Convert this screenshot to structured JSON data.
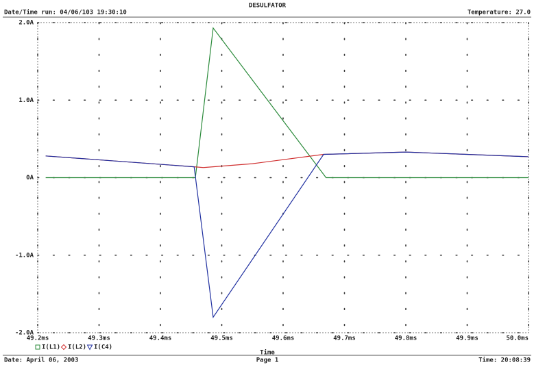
{
  "chart_data": {
    "type": "line",
    "title": "DESULFATOR",
    "run_info": "Date/Time run: 04/06/103 19:30:10",
    "temperature": "Temperature: 27.0",
    "date": "Date: April 06, 2003",
    "page": "Page 1",
    "time": "Time: 20:08:39",
    "xlabel": "Time",
    "xlim": [
      49.2,
      50.0
    ],
    "ylim": [
      -2.0,
      2.0
    ],
    "xticks": [
      {
        "value": 49.2,
        "label": "49.2ms"
      },
      {
        "value": 49.3,
        "label": "49.3ms"
      },
      {
        "value": 49.4,
        "label": "49.4ms"
      },
      {
        "value": 49.5,
        "label": "49.5ms"
      },
      {
        "value": 49.6,
        "label": "49.6ms"
      },
      {
        "value": 49.7,
        "label": "49.7ms"
      },
      {
        "value": 49.8,
        "label": "49.8ms"
      },
      {
        "value": 49.9,
        "label": "49.9ms"
      },
      {
        "value": 50.0,
        "label": "50.0ms"
      }
    ],
    "yticks": [
      {
        "value": 2.0,
        "label": "2.0A"
      },
      {
        "value": 1.0,
        "label": "1.0A"
      },
      {
        "value": 0,
        "label": "0A"
      },
      {
        "value": -1.0,
        "label": "-1.0A"
      },
      {
        "value": -2.0,
        "label": "-2.0A"
      }
    ],
    "grid": true,
    "series": [
      {
        "name": "I(L1)",
        "color": "#2a8a3a",
        "marker": "square",
        "x": [
          49.213,
          49.457,
          49.486,
          49.67,
          50.0
        ],
        "values": [
          0,
          0,
          1.93,
          0,
          0
        ]
      },
      {
        "name": "I(L2)",
        "color": "#d03030",
        "marker": "diamond",
        "x": [
          49.213,
          49.455,
          49.47,
          49.55,
          49.666,
          49.8,
          50.0
        ],
        "values": [
          0.28,
          0.14,
          0.13,
          0.18,
          0.3,
          0.33,
          0.27
        ]
      },
      {
        "name": "I(C4)",
        "color": "#2030a0",
        "marker": "triangle",
        "x": [
          49.213,
          49.455,
          49.486,
          49.666,
          49.8,
          50.0
        ],
        "values": [
          0.28,
          0.14,
          -1.8,
          0.3,
          0.33,
          0.27
        ]
      }
    ]
  }
}
